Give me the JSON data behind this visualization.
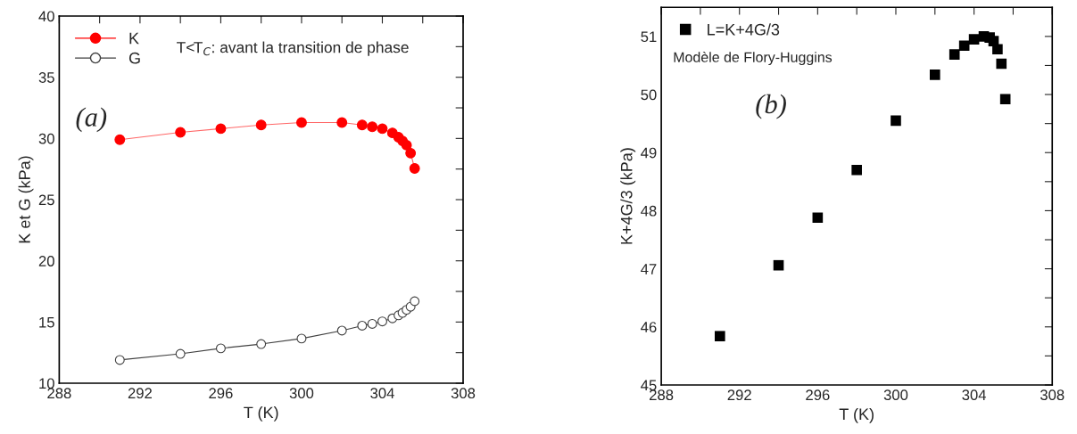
{
  "chart_data": [
    {
      "type": "line",
      "xlabel": "T (K)",
      "ylabel": "K et G (kPa)",
      "xlim": [
        288,
        308
      ],
      "ylim": [
        10,
        40
      ],
      "xticks": [
        288,
        {
          "value": 290,
          "label": null
        },
        292,
        {
          "value": 294,
          "label": null
        },
        296,
        {
          "value": 298,
          "label": null
        },
        300,
        {
          "value": 302,
          "label": null
        },
        304,
        {
          "value": 306,
          "label": null
        },
        308
      ],
      "yticks": [
        10,
        {
          "value": 12.5,
          "label": null
        },
        15,
        {
          "value": 17.5,
          "label": null
        },
        20,
        {
          "value": 22.5,
          "label": null
        },
        25,
        {
          "value": 27.5,
          "label": null
        },
        30,
        {
          "value": 32.5,
          "label": null
        },
        35,
        {
          "value": 37.5,
          "label": null
        },
        40
      ],
      "x": [
        291,
        294,
        296,
        298,
        300,
        302,
        303,
        303.5,
        304,
        304.5,
        304.8,
        305,
        305.2,
        305.4,
        305.6
      ],
      "series": [
        {
          "name": "K",
          "color": "#ff0000",
          "marker": "circle",
          "values": [
            29.9,
            30.5,
            30.8,
            31.1,
            31.3,
            31.3,
            31.1,
            30.95,
            30.8,
            30.45,
            30.1,
            29.8,
            29.45,
            28.8,
            27.55
          ]
        },
        {
          "name": "G",
          "color": "#404040",
          "marker": "circle",
          "values": [
            11.9,
            12.4,
            12.85,
            13.2,
            13.65,
            14.3,
            14.7,
            14.85,
            15.05,
            15.3,
            15.55,
            15.75,
            16.0,
            16.25,
            16.7
          ]
        }
      ],
      "annotations": [
        "T<T$_{C}$: avant la transition de phase",
        "(a)"
      ],
      "legend": "top left",
      "grid": false
    },
    {
      "type": "scatter",
      "xlabel": "T (K)",
      "ylabel": "K+4G/3 (kPa)",
      "xlim": [
        288,
        308
      ],
      "ylim": [
        45,
        51.5
      ],
      "xticks": [
        288,
        {
          "value": 290,
          "label": null
        },
        292,
        {
          "value": 294,
          "label": null
        },
        296,
        {
          "value": 298,
          "label": null
        },
        300,
        {
          "value": 302,
          "label": null
        },
        304,
        {
          "value": 306,
          "label": null
        },
        308
      ],
      "yticks": [
        45,
        {
          "value": 45.5,
          "label": null
        },
        46,
        {
          "value": 46.5,
          "label": null
        },
        47,
        {
          "value": 47.5,
          "label": null
        },
        48,
        {
          "value": 48.5,
          "label": null
        },
        49,
        {
          "value": 49.5,
          "label": null
        },
        50,
        {
          "value": 50.5,
          "label": null
        },
        51
      ],
      "x": [
        291,
        294,
        296,
        298,
        300,
        302,
        303,
        303.5,
        304,
        304.5,
        304.8,
        305,
        305.2,
        305.4,
        305.6
      ],
      "series": [
        {
          "name": "L=K+4G/3",
          "color": "#000000",
          "marker": "square",
          "values": [
            45.84,
            47.06,
            47.88,
            48.7,
            49.55,
            50.34,
            50.69,
            50.84,
            50.95,
            51.0,
            50.98,
            50.92,
            50.78,
            50.53,
            49.92
          ]
        }
      ],
      "annotations": [
        "Modèle de Flory-Huggins",
        "(b)"
      ],
      "legend": "top left",
      "grid": false
    }
  ]
}
